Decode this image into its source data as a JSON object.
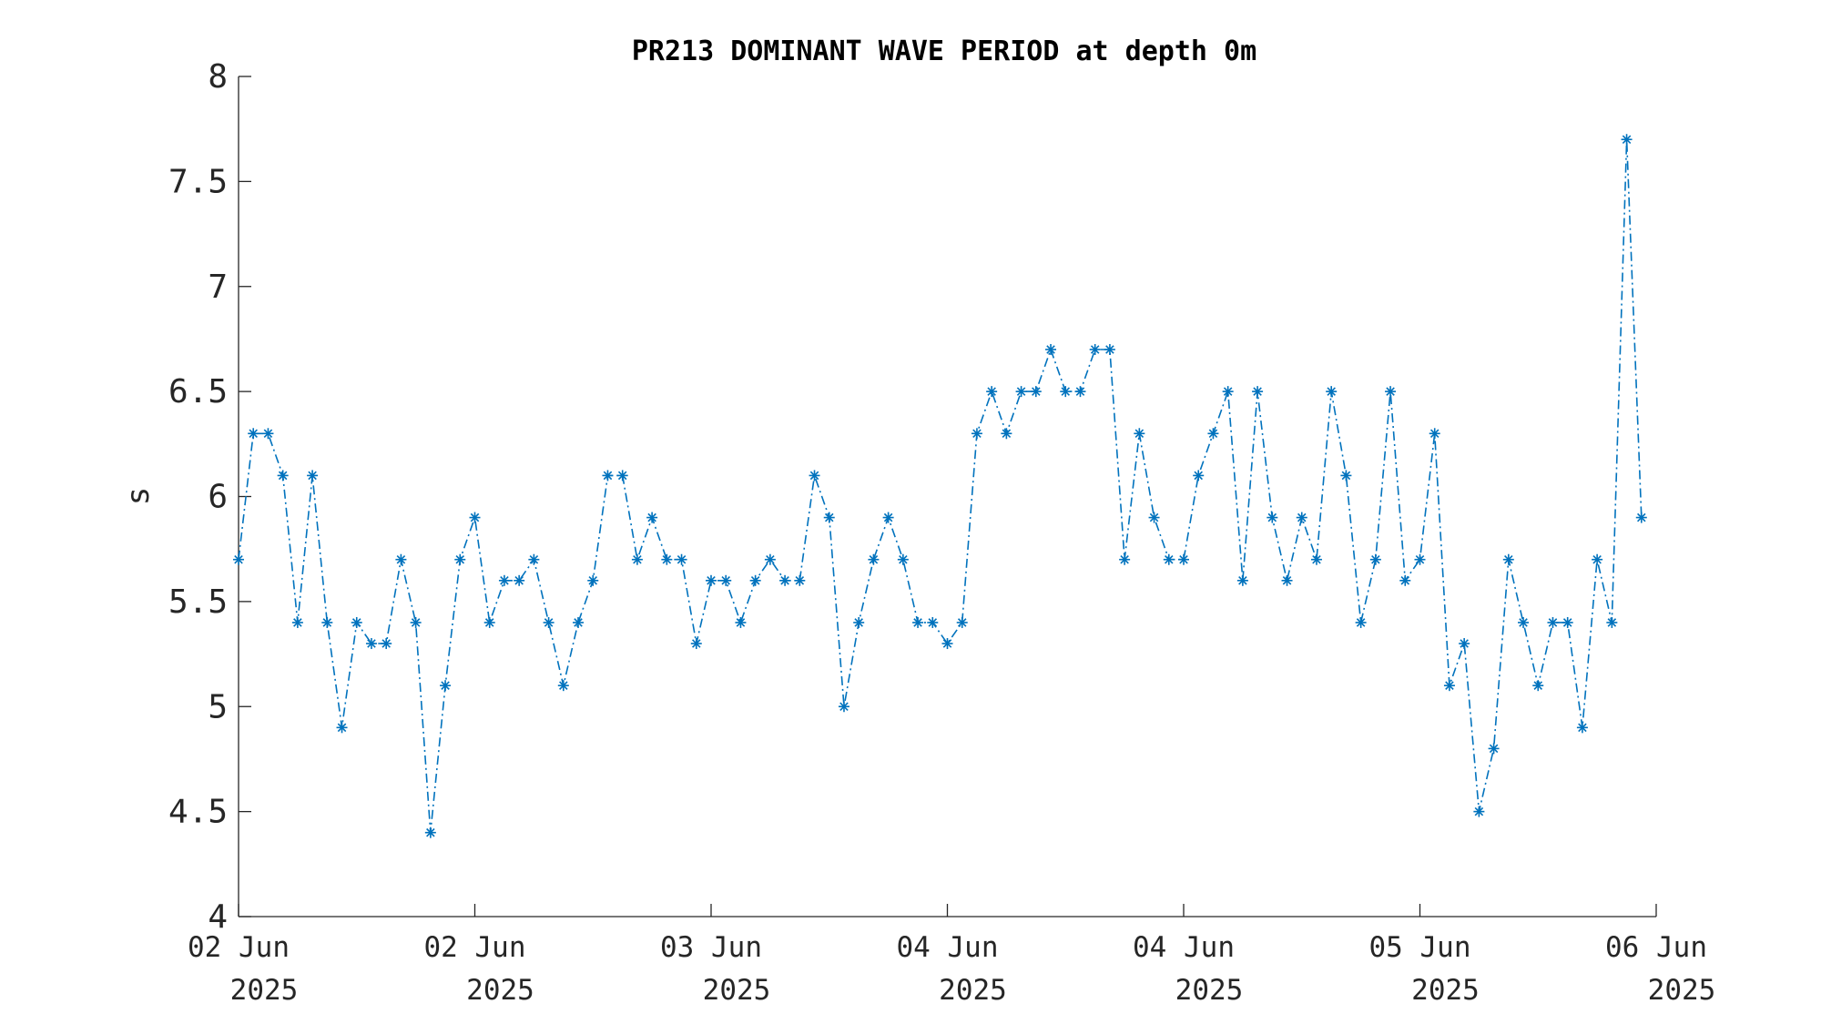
{
  "chart_data": {
    "type": "line",
    "title": "PR213 DOMINANT WAVE PERIOD at depth 0m",
    "xlabel": "",
    "ylabel": "s",
    "ylim": [
      4,
      8
    ],
    "yticks": [
      "4",
      "4.5",
      "5",
      "5.5",
      "6",
      "6.5",
      "7",
      "7.5",
      "8"
    ],
    "xlim": [
      0,
      96
    ],
    "xticks": [
      {
        "day": "02 Jun",
        "year": "2025"
      },
      {
        "day": "02 Jun",
        "year": "2025"
      },
      {
        "day": "03 Jun",
        "year": "2025"
      },
      {
        "day": "04 Jun",
        "year": "2025"
      },
      {
        "day": "04 Jun",
        "year": "2025"
      },
      {
        "day": "05 Jun",
        "year": "2025"
      },
      {
        "day": "06 Jun",
        "year": "2025"
      }
    ],
    "grid": false,
    "legend": "none",
    "line_color": "#0072bd",
    "line_style": "dash-dot",
    "marker": "asterisk",
    "series": [
      {
        "values": [
          5.7,
          6.3,
          6.3,
          6.1,
          5.4,
          6.1,
          5.4,
          4.9,
          5.4,
          5.3,
          5.3,
          5.7,
          5.4,
          4.4,
          5.1,
          5.7,
          5.9,
          5.4,
          5.6,
          5.6,
          5.7,
          5.4,
          5.1,
          5.4,
          5.6,
          6.1,
          6.1,
          5.7,
          5.9,
          5.7,
          5.7,
          5.3,
          5.6,
          5.6,
          5.4,
          5.6,
          5.7,
          5.6,
          5.6,
          6.1,
          5.9,
          5.0,
          5.4,
          5.7,
          5.9,
          5.7,
          5.4,
          5.4,
          5.3,
          5.4,
          6.3,
          6.5,
          6.3,
          6.5,
          6.5,
          6.7,
          6.5,
          6.5,
          6.7,
          6.7,
          5.7,
          6.3,
          5.9,
          5.7,
          5.7,
          6.1,
          6.3,
          6.5,
          5.6,
          6.5,
          5.9,
          5.6,
          5.9,
          5.7,
          6.5,
          6.1,
          5.4,
          5.7,
          6.5,
          5.6,
          5.7,
          6.3,
          5.1,
          5.3,
          4.5,
          4.8,
          5.7,
          5.4,
          5.1,
          5.4,
          5.4,
          4.9,
          5.7,
          5.4,
          7.7,
          5.9
        ]
      }
    ]
  }
}
